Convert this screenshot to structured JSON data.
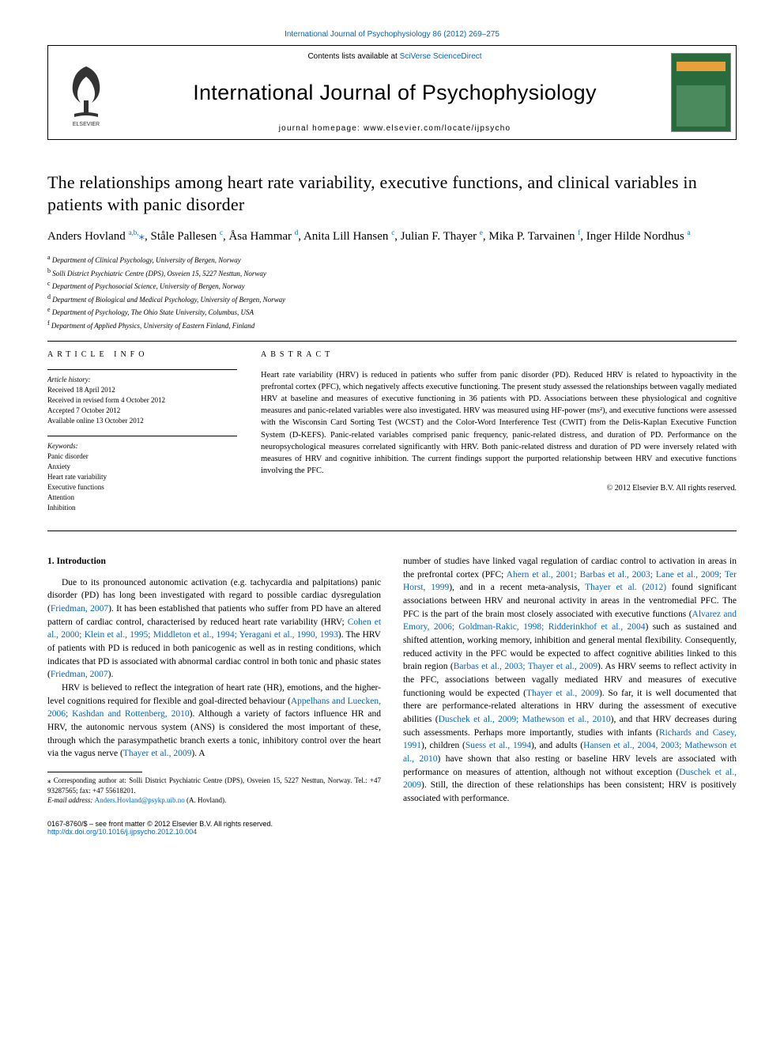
{
  "top_link": "International Journal of Psychophysiology 86 (2012) 269–275",
  "header": {
    "contents_prefix": "Contents lists available at ",
    "contents_link": "SciVerse ScienceDirect",
    "journal_title": "International Journal of Psychophysiology",
    "homepage_prefix": "journal homepage: ",
    "homepage_url": "www.elsevier.com/locate/ijpsycho"
  },
  "article": {
    "title": "The relationships among heart rate variability, executive functions, and clinical variables in patients with panic disorder",
    "authors_html": "Anders Hovland <sup>a,b,</sup><span class='star'>⁎</span>, Ståle Pallesen <sup>c</sup>, Åsa Hammar <sup>d</sup>, Anita Lill Hansen <sup>c</sup>, Julian F. Thayer <sup>e</sup>, Mika P. Tarvainen <sup>f</sup>, Inger Hilde Nordhus <sup>a</sup>",
    "affiliations": [
      {
        "key": "a",
        "text": "Department of Clinical Psychology, University of Bergen, Norway"
      },
      {
        "key": "b",
        "text": "Solli District Psychiatric Centre (DPS), Osveien 15, 5227 Nesttun, Norway"
      },
      {
        "key": "c",
        "text": "Department of Psychosocial Science, University of Bergen, Norway"
      },
      {
        "key": "d",
        "text": "Department of Biological and Medical Psychology, University of Bergen, Norway"
      },
      {
        "key": "e",
        "text": "Department of Psychology, The Ohio State University, Columbus, USA"
      },
      {
        "key": "f",
        "text": "Department of Applied Physics, University of Eastern Finland, Finland"
      }
    ]
  },
  "info": {
    "heading": "ARTICLE INFO",
    "history_label": "Article history:",
    "history": [
      "Received 18 April 2012",
      "Received in revised form 4 October 2012",
      "Accepted 7 October 2012",
      "Available online 13 October 2012"
    ],
    "keywords_label": "Keywords:",
    "keywords": [
      "Panic disorder",
      "Anxiety",
      "Heart rate variability",
      "Executive functions",
      "Attention",
      "Inhibition"
    ]
  },
  "abstract": {
    "heading": "ABSTRACT",
    "text": "Heart rate variability (HRV) is reduced in patients who suffer from panic disorder (PD). Reduced HRV is related to hypoactivity in the prefrontal cortex (PFC), which negatively affects executive functioning. The present study assessed the relationships between vagally mediated HRV at baseline and measures of executive functioning in 36 patients with PD. Associations between these physiological and cognitive measures and panic-related variables were also investigated. HRV was measured using HF-power (ms²), and executive functions were assessed with the Wisconsin Card Sorting Test (WCST) and the Color-Word Interference Test (CWIT) from the Delis-Kaplan Executive Function System (D-KEFS). Panic-related variables comprised panic frequency, panic-related distress, and duration of PD. Performance on the neuropsychological measures correlated significantly with HRV. Both panic-related distress and duration of PD were inversely related with measures of HRV and cognitive inhibition. The current findings support the purported relationship between HRV and executive functions involving the PFC.",
    "copyright": "© 2012 Elsevier B.V. All rights reserved."
  },
  "body": {
    "section_heading": "1. Introduction",
    "para1_html": "Due to its pronounced autonomic activation (e.g. tachycardia and palpitations) panic disorder (PD) has long been investigated with regard to possible cardiac dysregulation (<span class='cite'>Friedman, 2007</span>). It has been established that patients who suffer from PD have an altered pattern of cardiac control, characterised by reduced heart rate variability (HRV; <span class='cite'>Cohen et al., 2000; Klein et al., 1995; Middleton et al., 1994; Yeragani et al., 1990, 1993</span>). The HRV of patients with PD is reduced in both panicogenic as well as in resting conditions, which indicates that PD is associated with abnormal cardiac control in both tonic and phasic states (<span class='cite'>Friedman, 2007</span>).",
    "para2_html": "HRV is believed to reflect the integration of heart rate (HR), emotions, and the higher-level cognitions required for flexible and goal-directed behaviour (<span class='cite'>Appelhans and Luecken, 2006; Kashdan and Rottenberg, 2010</span>). Although a variety of factors influence HR and HRV, the autonomic nervous system (ANS) is considered the most important of these, through which the parasympathetic branch exerts a tonic, inhibitory control over the heart via the vagus nerve (<span class='cite'>Thayer et al., 2009</span>). A",
    "para2b_html": "number of studies have linked vagal regulation of cardiac control to activation in areas in the prefrontal cortex (PFC; <span class='cite'>Ahern et al., 2001; Barbas et al., 2003; Lane et al., 2009; Ter Horst, 1999</span>), and in a recent meta-analysis, <span class='cite'>Thayer et al. (2012)</span> found significant associations between HRV and neuronal activity in areas in the ventromedial PFC. The PFC is the part of the brain most closely associated with executive functions (<span class='cite'>Alvarez and Emory, 2006; Goldman-Rakic, 1998; Ridderinkhof et al., 2004</span>) such as sustained and shifted attention, working memory, inhibition and general mental flexibility. Consequently, reduced activity in the PFC would be expected to affect cognitive abilities linked to this brain region (<span class='cite'>Barbas et al., 2003; Thayer et al., 2009</span>). As HRV seems to reflect activity in the PFC, associations between vagally mediated HRV and measures of executive functioning would be expected (<span class='cite'>Thayer et al., 2009</span>). So far, it is well documented that there are performance-related alterations in HRV during the assessment of executive abilities (<span class='cite'>Duschek et al., 2009; Mathewson et al., 2010</span>), and that HRV decreases during such assessments. Perhaps more importantly, studies with infants (<span class='cite'>Richards and Casey, 1991</span>), children (<span class='cite'>Suess et al., 1994</span>), and adults (<span class='cite'>Hansen et al., 2004, 2003; Mathewson et al., 2010</span>) have shown that also resting or baseline HRV levels are associated with performance on measures of attention, although not without exception (<span class='cite'>Duschek et al., 2009</span>). Still, the direction of these relationships has been consistent; HRV is positively associated with performance."
  },
  "footnote": {
    "corr_html": "⁎ Corresponding author at: Solli District Psychiatric Centre (DPS), Osveien 15, 5227 Nesttun, Norway. Tel.: +47 93287565; fax: +47 55618201.",
    "email_label": "E-mail address: ",
    "email": "Anders.Hovland@psykp.uib.no",
    "email_suffix": " (A. Hovland)."
  },
  "bottom": {
    "left_line1": "0167-8760/$ – see front matter © 2012 Elsevier B.V. All rights reserved.",
    "doi": "http://dx.doi.org/10.1016/j.ijpsycho.2012.10.004"
  },
  "colors": {
    "link": "#0066cc",
    "text": "#000000",
    "cover_bg": "#2a6b3d",
    "cover_band": "#e8a03a"
  },
  "typography": {
    "title_fontsize_pt": 22,
    "authors_fontsize_pt": 15,
    "affil_fontsize_pt": 9,
    "journal_title_fontsize_pt": 27,
    "body_fontsize_pt": 11.5,
    "abstract_fontsize_pt": 10.5,
    "info_fontsize_pt": 9
  }
}
